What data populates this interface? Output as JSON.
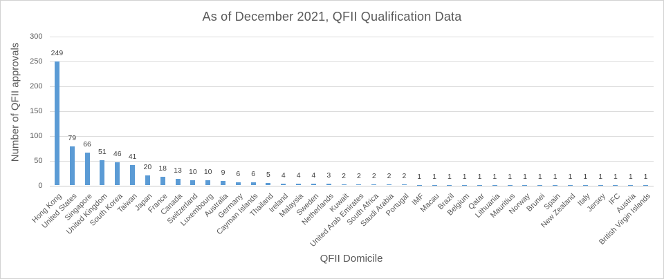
{
  "chart_data": {
    "type": "bar",
    "title": "As of December 2021, QFII Qualification Data",
    "xlabel": "QFII Domicile",
    "ylabel": "Number of QFII approvals",
    "categories": [
      "Hong Kong",
      "United States",
      "Singapore",
      "United Kingdom",
      "South Korea",
      "Taiwan",
      "Japan",
      "France",
      "Canada",
      "Switzerland",
      "Luxembourg",
      "Australia",
      "Germany",
      "Cayman Islands",
      "Thailand",
      "Ireland",
      "Malaysia",
      "Sweden",
      "Netherlands",
      "Kuwait",
      "United Arab Emirates",
      "South Africa",
      "Saudi Arabia",
      "Portugal",
      "IMF",
      "Macau",
      "Brazil",
      "Belgium",
      "Qatar",
      "Lithuania",
      "Mauritius",
      "Norway",
      "Brunei",
      "Spain",
      "New Zealand",
      "Italy",
      "Jersey",
      "IFC",
      "Austria",
      "British Virgin Islands"
    ],
    "values": [
      249,
      79,
      66,
      51,
      46,
      41,
      20,
      18,
      13,
      10,
      10,
      9,
      6,
      6,
      5,
      4,
      4,
      4,
      3,
      2,
      2,
      2,
      2,
      2,
      1,
      1,
      1,
      1,
      1,
      1,
      1,
      1,
      1,
      1,
      1,
      1,
      1,
      1,
      1,
      1
    ],
    "data_labels_shown": true,
    "yticks": [
      0,
      50,
      100,
      150,
      200,
      250,
      300
    ],
    "ylim": [
      0,
      300
    ],
    "grid": true,
    "legend": "none",
    "bar_color": "#5b9bd5",
    "gridline_color": "#dcdcdc",
    "axis_line_color": "#c9c9c9",
    "text_color": "#595959",
    "data_label_color": "#404040"
  }
}
